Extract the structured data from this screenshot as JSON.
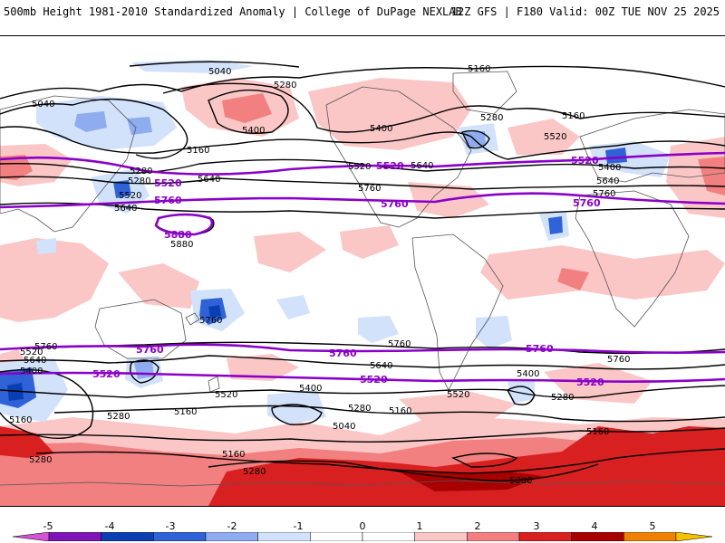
{
  "header": {
    "left": "500mb Height 1981-2010 Standardized Anomaly | College of DuPage NEXLAB",
    "right": "12Z GFS | F180 Valid: 00Z TUE NOV 25 2025"
  },
  "contour_labels": {
    "black": [
      "5040",
      "5160",
      "5280",
      "5040",
      "5400",
      "5160",
      "5280",
      "5400",
      "5520",
      "5280",
      "5640",
      "5760",
      "5880",
      "5280",
      "5400",
      "5520",
      "5640",
      "5160",
      "5280",
      "5520",
      "5400",
      "5640",
      "5760",
      "5520",
      "5280",
      "5400",
      "5640",
      "5760",
      "5520",
      "5760",
      "5640",
      "5760",
      "5640",
      "5400",
      "5520",
      "5160",
      "5280",
      "5160",
      "5040",
      "5280",
      "5160",
      "5520",
      "5400",
      "5280",
      "5160",
      "5280",
      "5280",
      "5160",
      "5280",
      "5400",
      "5160",
      "5280",
      "5760",
      "5760"
    ],
    "purple": [
      "5520",
      "5520",
      "5520",
      "5760",
      "5760",
      "5760",
      "5880",
      "5760",
      "5760",
      "5760",
      "5520",
      "5520",
      "5520"
    ]
  },
  "colorbar": {
    "ticks": [
      "-5",
      "-4",
      "-3",
      "-2",
      "-1",
      "0",
      "1",
      "2",
      "3",
      "4",
      "5"
    ],
    "colors": [
      "#d452d4",
      "#7e14b8",
      "#0a3fb3",
      "#2f62d6",
      "#8eacef",
      "#d2e2fb",
      "#ffffff",
      "#ffffff",
      "#fbc6c6",
      "#f28080",
      "#d92020",
      "#a80000",
      "#f08000",
      "#f7c000"
    ]
  }
}
